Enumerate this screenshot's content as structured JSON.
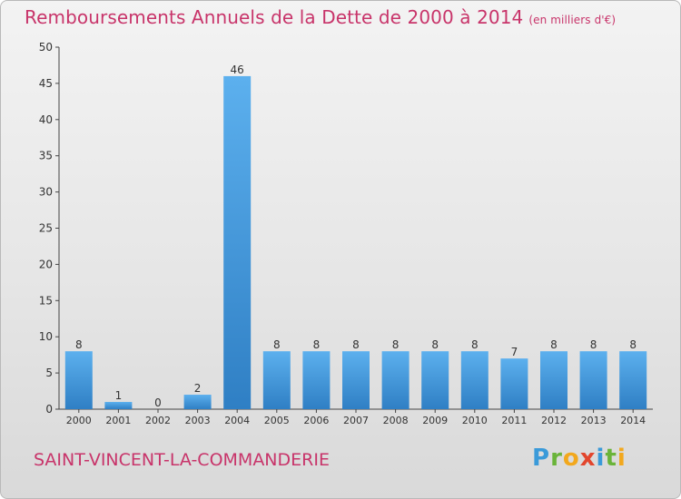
{
  "chart_data": {
    "type": "bar",
    "title": "Remboursements Annuels de la Dette de 2000 à 2014",
    "unit_note": "(en milliers d'€)",
    "categories": [
      "2000",
      "2001",
      "2002",
      "2003",
      "2004",
      "2005",
      "2006",
      "2007",
      "2008",
      "2009",
      "2010",
      "2011",
      "2012",
      "2013",
      "2014"
    ],
    "values": [
      8,
      1,
      0,
      2,
      46,
      8,
      8,
      8,
      8,
      8,
      8,
      7,
      8,
      8,
      8
    ],
    "data_labels": [
      "8",
      "1",
      "0",
      "2",
      "46",
      "8",
      "8",
      "8",
      "8",
      "8",
      "8",
      "7",
      "8",
      "8",
      "8"
    ],
    "ylim": [
      0,
      50
    ],
    "yticks": [
      0,
      5,
      10,
      15,
      20,
      25,
      30,
      35,
      40,
      45,
      50
    ],
    "ytick_labels": [
      "0",
      "5",
      "10",
      "15",
      "20",
      "25",
      "30",
      "35",
      "40",
      "45",
      "50"
    ],
    "xlabel": "",
    "ylabel": "",
    "grid": false,
    "bar_color": "#4a9fe0"
  },
  "footer": {
    "commune": "SAINT-VINCENT-LA-COMMANDERIE",
    "logo_letters": [
      "P",
      "r",
      "o",
      "x",
      "i",
      "t",
      "i"
    ]
  }
}
